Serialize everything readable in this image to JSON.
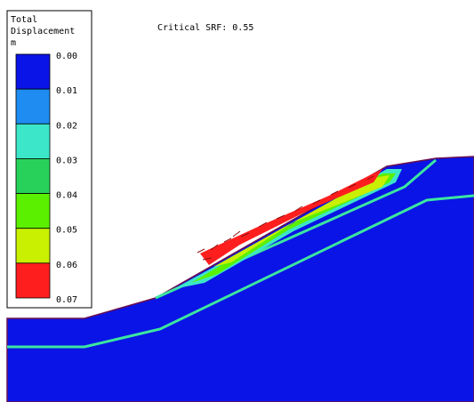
{
  "annotation": "Critical SRF: 0.55",
  "legend": {
    "title": [
      "Total",
      "Displacement",
      "m"
    ],
    "labels": [
      "0.00",
      "0.01",
      "0.02",
      "0.03",
      "0.04",
      "0.05",
      "0.06",
      "0.07"
    ],
    "colors": [
      "#0a14e6",
      "#1e8cf0",
      "#3ce6c8",
      "#28d25a",
      "#5af000",
      "#c8f000",
      "#ff1e1e"
    ]
  }
}
